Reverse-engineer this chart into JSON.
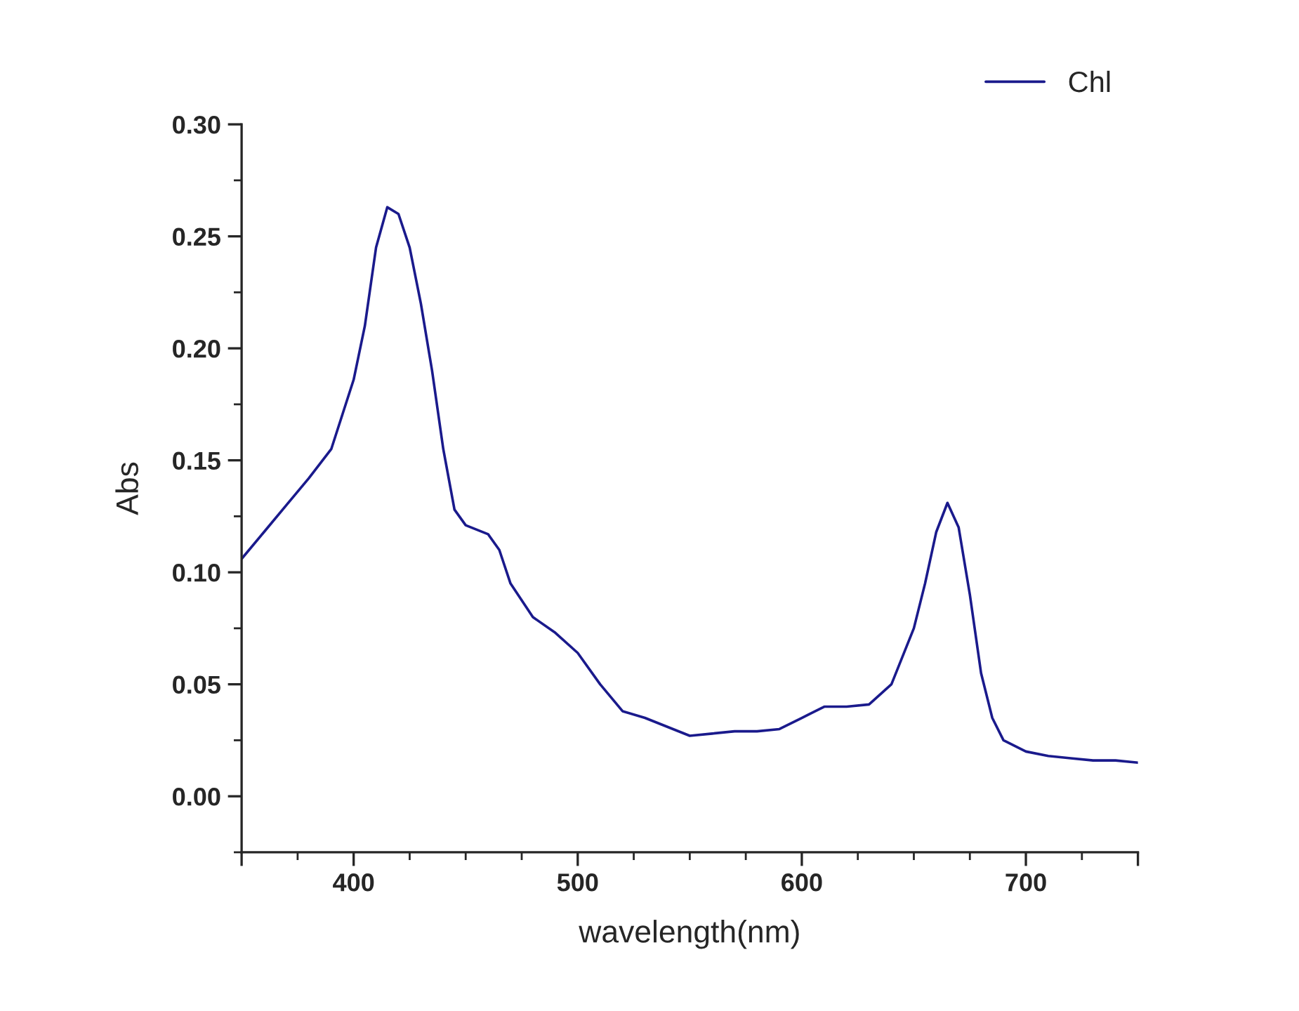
{
  "chart_data": {
    "type": "line",
    "xlabel": "wavelength(nm)",
    "ylabel": "Abs",
    "x": [
      350,
      360,
      370,
      380,
      390,
      400,
      405,
      410,
      415,
      420,
      425,
      430,
      435,
      440,
      445,
      450,
      460,
      465,
      470,
      480,
      490,
      500,
      510,
      520,
      530,
      540,
      550,
      560,
      570,
      580,
      590,
      600,
      610,
      620,
      630,
      640,
      650,
      655,
      660,
      665,
      670,
      675,
      680,
      685,
      690,
      700,
      710,
      720,
      730,
      740,
      750
    ],
    "series": [
      {
        "name": "Chl",
        "color": "#1a1a8c",
        "values": [
          0.106,
          0.118,
          0.13,
          0.142,
          0.155,
          0.186,
          0.21,
          0.245,
          0.263,
          0.26,
          0.245,
          0.22,
          0.19,
          0.155,
          0.128,
          0.121,
          0.117,
          0.11,
          0.095,
          0.08,
          0.073,
          0.064,
          0.05,
          0.038,
          0.035,
          0.031,
          0.027,
          0.028,
          0.029,
          0.029,
          0.03,
          0.035,
          0.04,
          0.04,
          0.041,
          0.05,
          0.075,
          0.095,
          0.118,
          0.131,
          0.12,
          0.09,
          0.055,
          0.035,
          0.025,
          0.02,
          0.018,
          0.017,
          0.016,
          0.016,
          0.015
        ]
      }
    ],
    "xlim": [
      350,
      750
    ],
    "xticks": [
      {
        "value": 350,
        "label": null
      },
      400,
      500,
      600,
      700,
      {
        "value": 750,
        "label": null
      }
    ],
    "ylim": [
      -0.025,
      0.3
    ],
    "yticks": [
      {
        "value": 0.0,
        "label": "0.00"
      },
      {
        "value": 0.05,
        "label": "0.05"
      },
      {
        "value": 0.1,
        "label": "0.10"
      },
      {
        "value": 0.15,
        "label": "0.15"
      },
      {
        "value": 0.2,
        "label": "0.20"
      },
      {
        "value": 0.25,
        "label": "0.25"
      },
      {
        "value": 0.3,
        "label": "0.30"
      }
    ],
    "grid": false,
    "legend": "top right",
    "marker": "none",
    "line_style": "solid"
  }
}
